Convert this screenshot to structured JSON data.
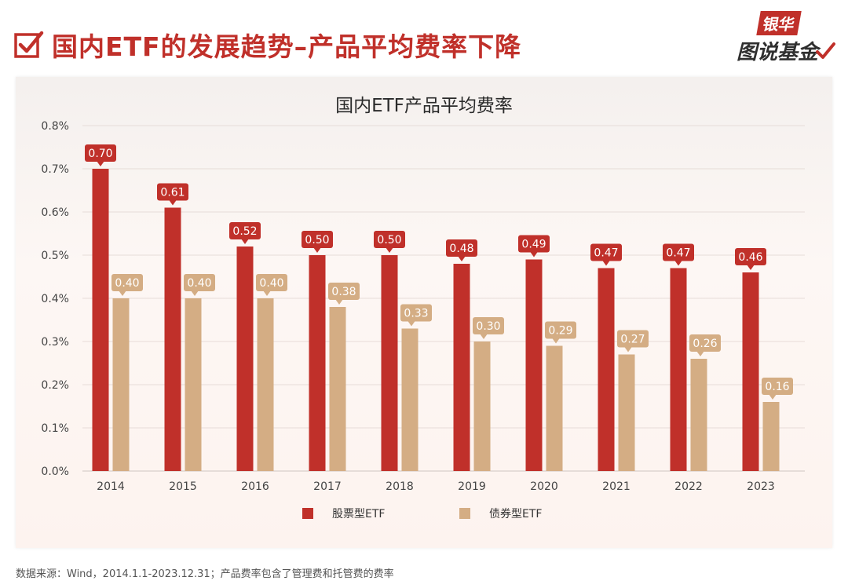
{
  "header": {
    "title": "国内ETF的发展趋势–产品平均费率下降",
    "check_icon": "checkbox-check-icon",
    "accent_color": "#c0302a"
  },
  "logo": {
    "brand": "银华",
    "subtitle": "图说基金"
  },
  "footnote": "数据来源：Wind，2014.1.1-2023.12.31；产品费率包含了管理费和托管费的费率",
  "chart_data": {
    "type": "bar",
    "title": "国内ETF产品平均费率",
    "xlabel": "",
    "ylabel": "",
    "ylim": [
      0,
      0.8
    ],
    "yticks": [
      "0.0%",
      "0.1%",
      "0.2%",
      "0.3%",
      "0.4%",
      "0.5%",
      "0.6%",
      "0.7%",
      "0.8%"
    ],
    "ytick_values": [
      0,
      0.1,
      0.2,
      0.3,
      0.4,
      0.5,
      0.6,
      0.7,
      0.8
    ],
    "grid": true,
    "legend_position": "bottom",
    "categories": [
      "2014",
      "2015",
      "2016",
      "2017",
      "2018",
      "2019",
      "2020",
      "2021",
      "2022",
      "2023"
    ],
    "series": [
      {
        "name": "股票型ETF",
        "color": "#c0302a",
        "values": [
          0.7,
          0.61,
          0.52,
          0.5,
          0.5,
          0.48,
          0.49,
          0.47,
          0.47,
          0.46
        ],
        "labels": [
          "0.70",
          "0.61",
          "0.52",
          "0.50",
          "0.50",
          "0.48",
          "0.49",
          "0.47",
          "0.47",
          "0.46"
        ]
      },
      {
        "name": "债券型ETF",
        "color": "#d4ad84",
        "values": [
          0.4,
          0.4,
          0.4,
          0.38,
          0.33,
          0.3,
          0.29,
          0.27,
          0.26,
          0.16
        ],
        "labels": [
          "0.40",
          "0.40",
          "0.40",
          "0.38",
          "0.33",
          "0.30",
          "0.29",
          "0.27",
          "0.26",
          "0.16"
        ]
      }
    ]
  }
}
